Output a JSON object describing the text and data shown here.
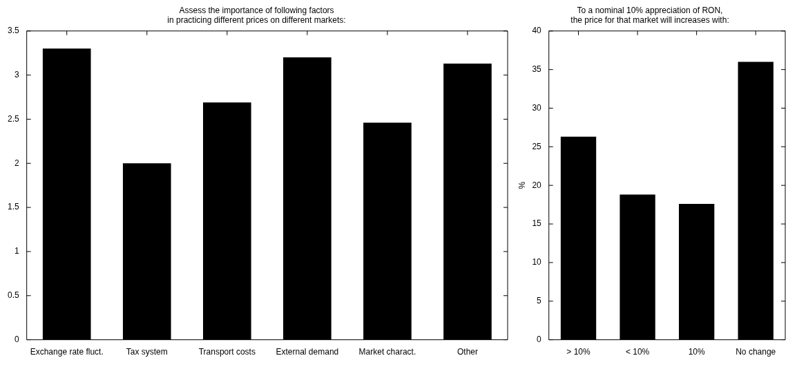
{
  "chart_data": [
    {
      "type": "bar",
      "title": "Assess the importance of following factors\nin practicing different prices on different markets:",
      "categories": [
        "Exchange rate fluct.",
        "Tax system",
        "Transport costs",
        "External demand",
        "Market charact.",
        "Other"
      ],
      "values": [
        3.3,
        2.0,
        2.69,
        3.2,
        2.46,
        3.13
      ],
      "color": "#000000",
      "ylim": [
        0,
        3.5
      ],
      "yticks": [
        0,
        0.5,
        1,
        1.5,
        2,
        2.5,
        3,
        3.5
      ]
    },
    {
      "type": "bar",
      "title": "To a nominal 10% appreciation of RON,\nthe price for that market will increases with:",
      "ylabel": "%",
      "categories": [
        "> 10%",
        "< 10%",
        "10%",
        "No change"
      ],
      "values": [
        26.3,
        18.8,
        17.6,
        36.0
      ],
      "color": "#000000",
      "ylim": [
        0,
        40
      ],
      "yticks": [
        0,
        5,
        10,
        15,
        20,
        25,
        30,
        35,
        40
      ]
    }
  ]
}
